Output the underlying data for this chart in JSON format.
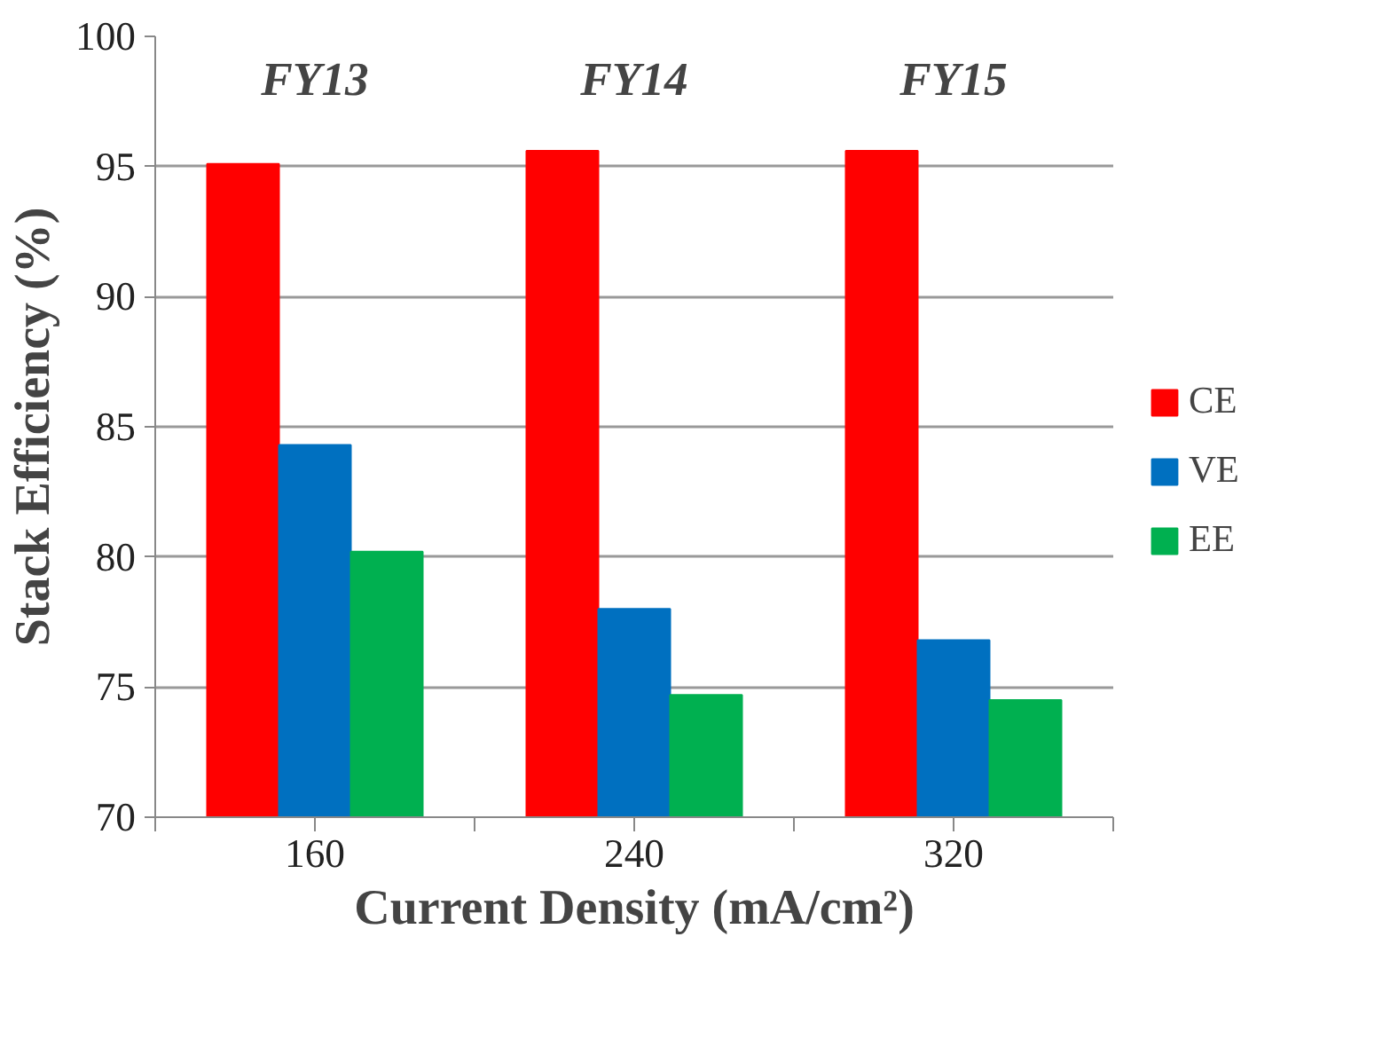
{
  "chart_data": {
    "type": "bar",
    "xlabel": "Current Density (mA/cm²)",
    "ylabel": "Stack Efficiency (%)",
    "categories": [
      "160",
      "240",
      "320"
    ],
    "series": [
      {
        "name": "CE",
        "color": "#ff0000",
        "values": [
          95.1,
          95.6,
          95.6
        ]
      },
      {
        "name": "VE",
        "color": "#0070c0",
        "values": [
          84.3,
          78.0,
          76.8
        ]
      },
      {
        "name": "EE",
        "color": "#00b050",
        "values": [
          80.2,
          74.7,
          74.5
        ]
      }
    ],
    "ylim": [
      70,
      100
    ],
    "yticks": [
      70,
      75,
      80,
      85,
      90,
      95,
      100
    ],
    "grid": "y",
    "legend": "right",
    "annotations": [
      "FY13",
      "FY14",
      "FY15"
    ]
  }
}
